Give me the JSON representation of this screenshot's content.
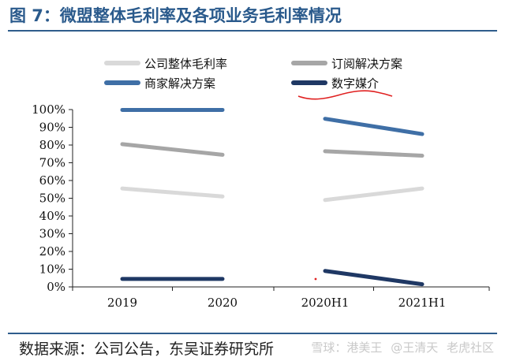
{
  "figure": {
    "title": "图 7：微盟整体毛利率及各项业务毛利率情况",
    "source": "数据来源：公司公告，东吴证券研究所",
    "watermark": [
      "雪球：港美王",
      "@王清天",
      "老虎社区"
    ]
  },
  "chart_data": {
    "type": "line",
    "title": "",
    "xlabel": "",
    "ylabel": "",
    "ylim": [
      0,
      100
    ],
    "yticks": [
      "0%",
      "10%",
      "20%",
      "30%",
      "40%",
      "50%",
      "60%",
      "70%",
      "80%",
      "90%",
      "100%"
    ],
    "categories": [
      "2019",
      "2020",
      "2020H1",
      "2021H1"
    ],
    "groups": [
      [
        0,
        1
      ],
      [
        2,
        3
      ]
    ],
    "grid": false,
    "legend": "top, two columns",
    "series": [
      {
        "name": "公司整体毛利率",
        "color": "#d9d9d9",
        "values": [
          55.5,
          51,
          49,
          55.5
        ]
      },
      {
        "name": "订阅解决方案",
        "color": "#a6a6a6",
        "values": [
          80.5,
          74.5,
          76.5,
          74
        ]
      },
      {
        "name": "商家解决方案",
        "color": "#3f6fa6",
        "values": [
          99.8,
          99.8,
          94.8,
          86.2
        ]
      },
      {
        "name": "数字媒介",
        "color": "#1f3864",
        "values": [
          4.5,
          4.5,
          9,
          1.5
        ]
      }
    ]
  }
}
